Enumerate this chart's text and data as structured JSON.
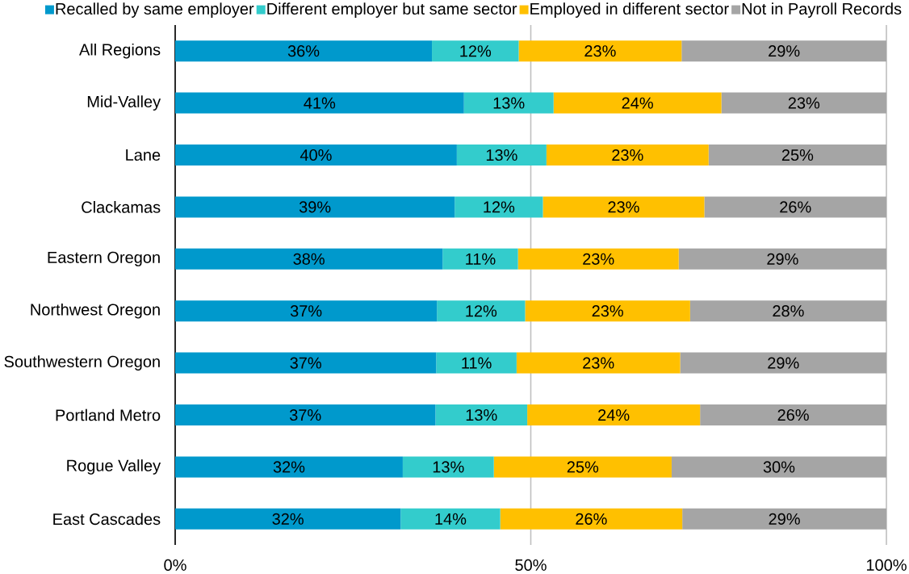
{
  "chart_data": {
    "type": "bar",
    "orientation": "horizontal",
    "stacked": true,
    "categories": [
      "All Regions",
      "Mid-Valley",
      "Lane",
      "Clackamas",
      "Eastern Oregon",
      "Northwest Oregon",
      "Southwestern Oregon",
      "Portland Metro",
      "Rogue Valley",
      "East Cascades"
    ],
    "series": [
      {
        "name": "Recalled by same employer",
        "color": "#0099cc",
        "values": [
          36.1,
          40.6,
          39.6,
          39.3,
          37.6,
          36.8,
          36.7,
          36.6,
          32.0,
          31.7
        ],
        "value_labels": [
          "36%",
          "41%",
          "40%",
          "39%",
          "38%",
          "37%",
          "37%",
          "37%",
          "32%",
          "32%"
        ]
      },
      {
        "name": "Different employer but same sector",
        "color": "#33cccc",
        "values": [
          12.2,
          12.6,
          12.6,
          12.4,
          10.6,
          12.4,
          11.3,
          12.9,
          12.8,
          14.0
        ],
        "value_labels": [
          "12%",
          "13%",
          "13%",
          "12%",
          "11%",
          "12%",
          "11%",
          "13%",
          "13%",
          "14%"
        ]
      },
      {
        "name": "Employed in different sector",
        "color": "#ffc000",
        "values": [
          22.9,
          23.6,
          22.8,
          22.7,
          22.6,
          23.2,
          23.0,
          24.3,
          25.0,
          25.6
        ],
        "value_labels": [
          "23%",
          "24%",
          "23%",
          "23%",
          "23%",
          "23%",
          "23%",
          "24%",
          "25%",
          "26%"
        ]
      },
      {
        "name": "Not in Payroll Records",
        "color": "#a5a5a5",
        "values": [
          28.8,
          23.2,
          25.0,
          25.6,
          29.2,
          27.6,
          29.0,
          26.2,
          30.2,
          28.7
        ],
        "value_labels": [
          "29%",
          "23%",
          "25%",
          "26%",
          "29%",
          "28%",
          "29%",
          "26%",
          "30%",
          "29%"
        ]
      }
    ],
    "xlim": [
      0,
      100
    ],
    "xticks": [
      {
        "value": 0,
        "label": "0%"
      },
      {
        "value": 50,
        "label": "50%"
      },
      {
        "value": 100,
        "label": "100%"
      }
    ],
    "grid": "x",
    "legend": "top"
  }
}
